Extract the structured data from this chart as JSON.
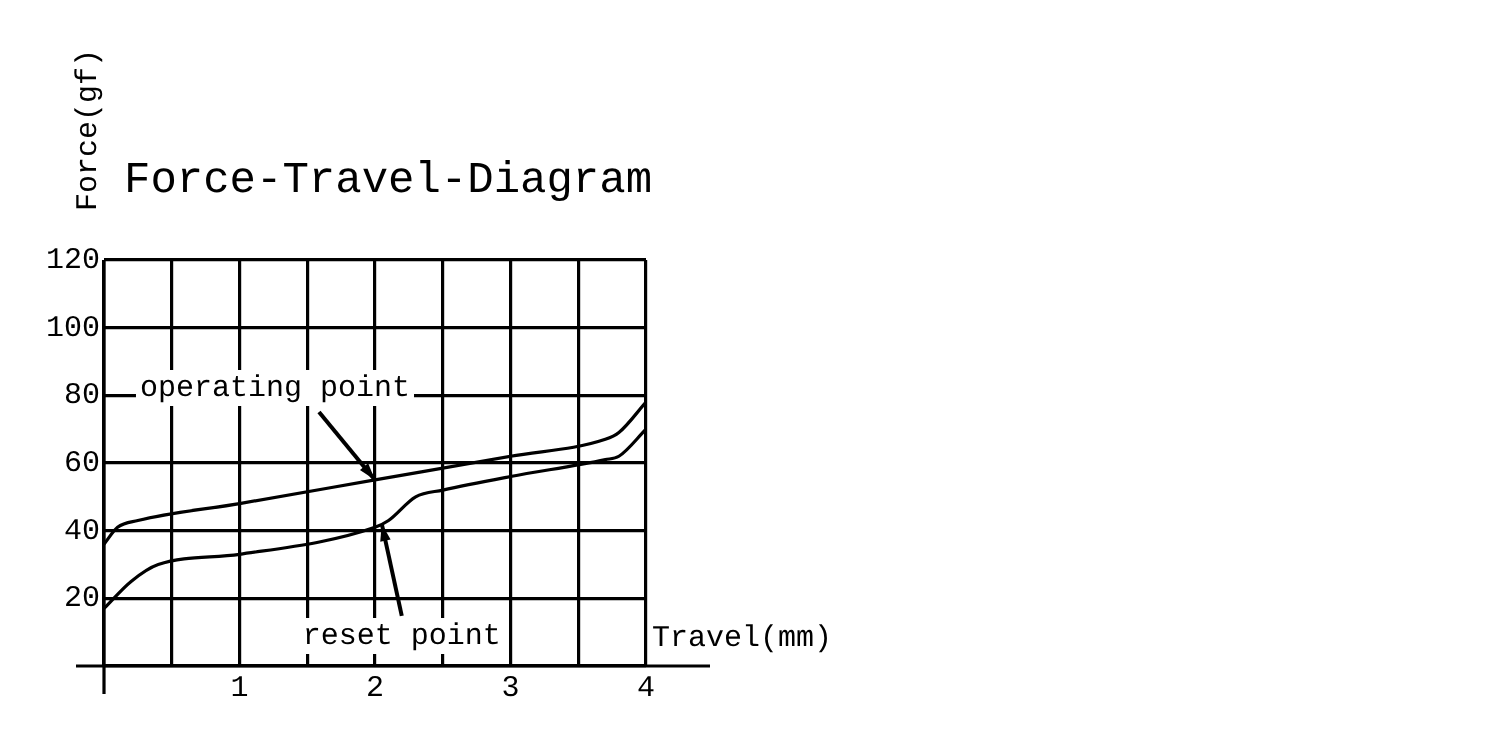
{
  "chart_data": {
    "type": "line",
    "title": "Force-Travel-Diagram",
    "xlabel": "Travel(mm)",
    "ylabel": "Force(gf)",
    "series": [
      {
        "color": "#000000",
        "x": [
          0,
          0.1,
          0.25,
          1,
          2,
          3,
          3.7,
          3.8,
          4
        ],
        "values": [
          36,
          41,
          43,
          48,
          55,
          62,
          67,
          69,
          78
        ]
      },
      {
        "color": "#000000",
        "x": [
          0,
          0.2,
          0.4,
          1,
          2,
          2.1,
          2.3,
          2.5,
          3,
          3.7,
          3.8,
          4
        ],
        "values": [
          17,
          25,
          30,
          33,
          41,
          43,
          50,
          52,
          56,
          61,
          62,
          70
        ]
      }
    ],
    "annotations": [
      {
        "text": "operating point",
        "x": 2,
        "y": 55
      },
      {
        "text": "reset point",
        "x": 2.05,
        "y": 42
      }
    ],
    "xlim": [
      0,
      4
    ],
    "ylim": [
      0,
      120
    ],
    "xticks": [
      {
        "value": 0,
        "label": null
      },
      {
        "value": 0.5,
        "label": null
      },
      1,
      {
        "value": 1.5,
        "label": null
      },
      2,
      {
        "value": 2.5,
        "label": null
      },
      3,
      {
        "value": 3.5,
        "label": null
      },
      4
    ],
    "yticks": [
      {
        "value": 0,
        "label": null
      },
      20,
      40,
      60,
      80,
      100,
      120
    ],
    "grid": true,
    "legend": false,
    "marker": "none",
    "line_style": "solid"
  }
}
